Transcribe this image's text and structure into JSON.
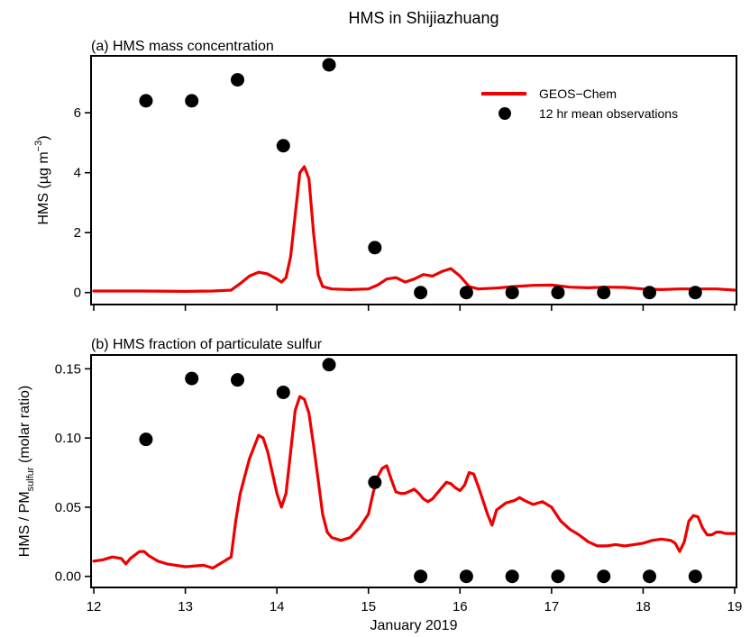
{
  "chart_data": {
    "suptitle": "HMS in Shijiazhuang",
    "xlabel": "January 2019",
    "xticks": [
      "12",
      "13",
      "14",
      "15",
      "16",
      "17",
      "18",
      "19"
    ],
    "xlim": [
      11.97,
      19.02
    ],
    "panels": [
      {
        "type": "line+scatter",
        "title": "(a) HMS mass concentration",
        "ylabel": {
          "prefix": "HMS (µg m",
          "superscript": "−3",
          "suffix": ")"
        },
        "ylim": [
          -0.4,
          7.9
        ],
        "yticks": [
          0,
          2,
          4,
          6
        ],
        "ytick_labels": [
          "0",
          "2",
          "4",
          "6"
        ],
        "legend": {
          "location": "upper right",
          "entries": [
            "GEOS−Chem",
            "12 hr mean observations"
          ]
        },
        "series": [
          {
            "name": "GEOS−Chem",
            "kind": "line",
            "color": "#ee0000",
            "x": [
              12.0,
              12.5,
              13.0,
              13.3,
              13.5,
              13.6,
              13.7,
              13.8,
              13.9,
              14.0,
              14.05,
              14.1,
              14.15,
              14.2,
              14.25,
              14.3,
              14.35,
              14.4,
              14.45,
              14.5,
              14.6,
              14.8,
              15.0,
              15.1,
              15.2,
              15.3,
              15.4,
              15.5,
              15.6,
              15.7,
              15.8,
              15.9,
              16.0,
              16.1,
              16.2,
              16.4,
              16.6,
              16.8,
              17.0,
              17.2,
              17.4,
              17.6,
              17.8,
              18.0,
              18.2,
              18.4,
              18.6,
              18.8,
              19.0
            ],
            "y": [
              0.05,
              0.05,
              0.04,
              0.05,
              0.08,
              0.3,
              0.55,
              0.68,
              0.62,
              0.45,
              0.35,
              0.5,
              1.2,
              2.6,
              4.0,
              4.2,
              3.8,
              2.0,
              0.6,
              0.2,
              0.12,
              0.1,
              0.12,
              0.25,
              0.45,
              0.5,
              0.35,
              0.45,
              0.6,
              0.55,
              0.7,
              0.8,
              0.55,
              0.2,
              0.12,
              0.15,
              0.2,
              0.24,
              0.25,
              0.18,
              0.16,
              0.18,
              0.17,
              0.12,
              0.1,
              0.12,
              0.12,
              0.12,
              0.08
            ]
          },
          {
            "name": "12 hr mean observations",
            "kind": "scatter",
            "color": "#000000",
            "x": [
              12.57,
              13.07,
              13.57,
              14.07,
              14.57,
              15.07,
              15.57,
              16.07,
              16.57,
              17.07,
              17.57,
              18.07,
              18.57
            ],
            "y": [
              6.4,
              6.4,
              7.1,
              4.9,
              7.6,
              1.5,
              0.0,
              0.0,
              0.0,
              0.0,
              0.0,
              0.0,
              0.0
            ]
          }
        ]
      },
      {
        "type": "line+scatter",
        "title": "(b) HMS fraction of particulate sulfur",
        "ylabel": {
          "prefix": "HMS /  PM",
          "subscript": "sulfur",
          "suffix": " (molar ratio)"
        },
        "ylim": [
          -0.008,
          0.16
        ],
        "yticks": [
          0.0,
          0.05,
          0.1,
          0.15
        ],
        "ytick_labels": [
          "0.00",
          "0.05",
          "0.10",
          "0.15"
        ],
        "series": [
          {
            "name": "GEOS−Chem",
            "kind": "line",
            "color": "#ee0000",
            "x": [
              12.0,
              12.1,
              12.2,
              12.3,
              12.35,
              12.4,
              12.5,
              12.55,
              12.6,
              12.7,
              12.8,
              13.0,
              13.2,
              13.3,
              13.4,
              13.5,
              13.55,
              13.6,
              13.7,
              13.8,
              13.85,
              13.9,
              14.0,
              14.05,
              14.1,
              14.15,
              14.2,
              14.25,
              14.3,
              14.35,
              14.4,
              14.45,
              14.5,
              14.55,
              14.6,
              14.7,
              14.8,
              14.9,
              15.0,
              15.05,
              15.1,
              15.15,
              15.2,
              15.25,
              15.3,
              15.35,
              15.4,
              15.5,
              15.55,
              15.6,
              15.65,
              15.7,
              15.8,
              15.85,
              15.9,
              15.95,
              16.0,
              16.05,
              16.1,
              16.15,
              16.2,
              16.25,
              16.3,
              16.35,
              16.4,
              16.5,
              16.6,
              16.65,
              16.7,
              16.8,
              16.9,
              17.0,
              17.1,
              17.2,
              17.3,
              17.4,
              17.5,
              17.6,
              17.7,
              17.8,
              17.9,
              18.0,
              18.1,
              18.2,
              18.3,
              18.35,
              18.4,
              18.45,
              18.5,
              18.55,
              18.6,
              18.65,
              18.7,
              18.75,
              18.8,
              18.85,
              18.9,
              19.0
            ],
            "y": [
              0.011,
              0.012,
              0.014,
              0.013,
              0.009,
              0.013,
              0.018,
              0.018,
              0.015,
              0.011,
              0.009,
              0.007,
              0.008,
              0.006,
              0.01,
              0.014,
              0.04,
              0.06,
              0.085,
              0.102,
              0.1,
              0.09,
              0.06,
              0.05,
              0.06,
              0.09,
              0.12,
              0.13,
              0.128,
              0.118,
              0.095,
              0.07,
              0.045,
              0.032,
              0.028,
              0.026,
              0.028,
              0.035,
              0.045,
              0.06,
              0.072,
              0.078,
              0.08,
              0.07,
              0.061,
              0.06,
              0.06,
              0.063,
              0.06,
              0.056,
              0.054,
              0.056,
              0.064,
              0.068,
              0.067,
              0.064,
              0.062,
              0.066,
              0.075,
              0.074,
              0.065,
              0.055,
              0.045,
              0.037,
              0.048,
              0.053,
              0.055,
              0.057,
              0.055,
              0.052,
              0.054,
              0.05,
              0.04,
              0.034,
              0.03,
              0.025,
              0.022,
              0.022,
              0.023,
              0.022,
              0.023,
              0.024,
              0.026,
              0.027,
              0.026,
              0.024,
              0.018,
              0.025,
              0.04,
              0.044,
              0.043,
              0.035,
              0.03,
              0.03,
              0.032,
              0.032,
              0.031,
              0.031
            ]
          },
          {
            "name": "12 hr mean observations",
            "kind": "scatter",
            "color": "#000000",
            "x": [
              12.57,
              13.07,
              13.57,
              14.07,
              14.57,
              15.07,
              15.57,
              16.07,
              16.57,
              17.07,
              17.57,
              18.07,
              18.57
            ],
            "y": [
              0.099,
              0.143,
              0.142,
              0.133,
              0.153,
              0.068,
              0.0,
              0.0,
              0.0,
              0.0,
              0.0,
              0.0,
              0.0
            ]
          }
        ]
      }
    ]
  }
}
